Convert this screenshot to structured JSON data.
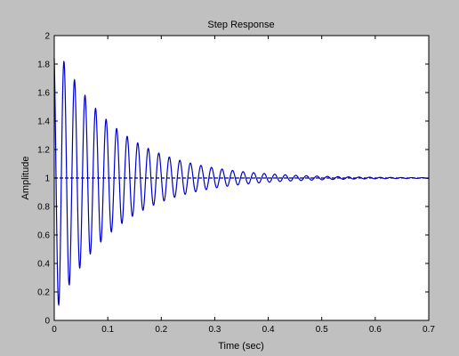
{
  "window": {
    "background": "#c0c0c0"
  },
  "chart_data": {
    "type": "line",
    "title": "Step Response",
    "xlabel": "Time (sec)",
    "ylabel": "Amplitude",
    "xlim": [
      0,
      0.7
    ],
    "ylim": [
      0,
      2
    ],
    "xticks": [
      "0",
      "0.1",
      "0.2",
      "0.3",
      "0.4",
      "0.5",
      "0.6",
      "0.7"
    ],
    "yticks": [
      "0",
      "0.2",
      "0.4",
      "0.6",
      "0.8",
      "1",
      "1.2",
      "1.4",
      "1.6",
      "1.8",
      "2"
    ],
    "grid": false,
    "legend": "none",
    "series_color": "#0000cc",
    "reference_line": {
      "y": 1,
      "style": "dashed",
      "color": "#000080"
    },
    "response": {
      "final_value": 1,
      "first_peak_time": 0.0083,
      "first_peak_value": 1.89,
      "second_peak_value": 1.75,
      "period": 0.0197,
      "settling_time": 0.7
    }
  }
}
